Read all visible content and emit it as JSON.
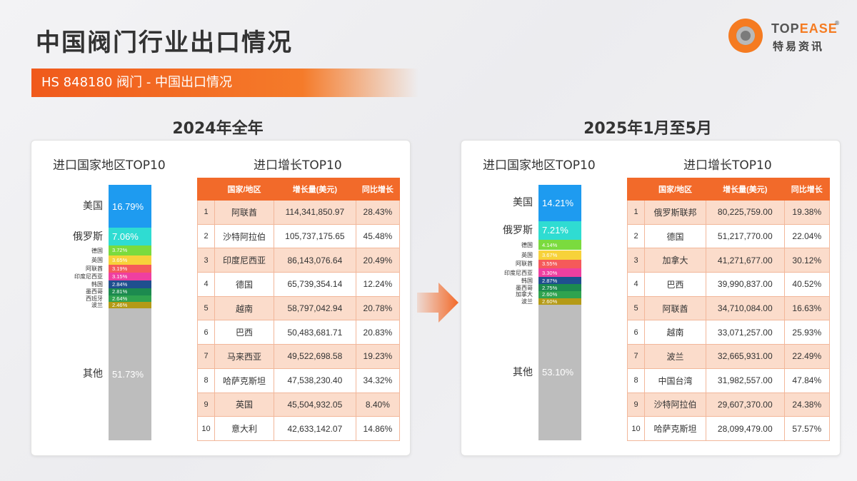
{
  "header": {
    "title": "中国阀门行业出口情况",
    "banner": "HS 848180 阀门 - 中国出口情况"
  },
  "logo": {
    "en_prefix": "TOP",
    "en_accent": "EASE",
    "reg": "®",
    "cn": "特易资讯"
  },
  "colors": {
    "accent": "#f26a2a",
    "segments": [
      "#1e9bf0",
      "#2fdcd2",
      "#7bdb3e",
      "#f7d23a",
      "#f55a5a",
      "#ef3fa0",
      "#1f4f8f",
      "#1c8a4f",
      "#2fa34f",
      "#b49a16",
      "#bdbdbd"
    ]
  },
  "panels": [
    {
      "period_title": "2024年全年",
      "share_title": "进口国家地区TOP10",
      "growth_title": "进口增长TOP10",
      "table_headers": [
        "",
        "国家/地区",
        "增长量(美元)",
        "同比增长"
      ],
      "growth_rows": [
        {
          "rank": "1",
          "country": "阿联酋",
          "amount": "114,341,850.97",
          "yoy": "28.43%"
        },
        {
          "rank": "2",
          "country": "沙特阿拉伯",
          "amount": "105,737,175.65",
          "yoy": "45.48%"
        },
        {
          "rank": "3",
          "country": "印度尼西亚",
          "amount": "86,143,076.64",
          "yoy": "20.49%"
        },
        {
          "rank": "4",
          "country": "德国",
          "amount": "65,739,354.14",
          "yoy": "12.24%"
        },
        {
          "rank": "5",
          "country": "越南",
          "amount": "58,797,042.94",
          "yoy": "20.78%"
        },
        {
          "rank": "6",
          "country": "巴西",
          "amount": "50,483,681.71",
          "yoy": "20.83%"
        },
        {
          "rank": "7",
          "country": "马来西亚",
          "amount": "49,522,698.58",
          "yoy": "19.23%"
        },
        {
          "rank": "8",
          "country": "哈萨克斯坦",
          "amount": "47,538,230.40",
          "yoy": "34.32%"
        },
        {
          "rank": "9",
          "country": "英国",
          "amount": "45,504,932.05",
          "yoy": "8.40%"
        },
        {
          "rank": "10",
          "country": "意大利",
          "amount": "42,633,142.07",
          "yoy": "14.86%"
        }
      ]
    },
    {
      "period_title": "2025年1月至5月",
      "share_title": "进口国家地区TOP10",
      "growth_title": "进口增长TOP10",
      "table_headers": [
        "",
        "国家/地区",
        "增长量(美元)",
        "同比增长"
      ],
      "growth_rows": [
        {
          "rank": "1",
          "country": "俄罗斯联邦",
          "amount": "80,225,759.00",
          "yoy": "19.38%"
        },
        {
          "rank": "2",
          "country": "德国",
          "amount": "51,217,770.00",
          "yoy": "22.04%"
        },
        {
          "rank": "3",
          "country": "加拿大",
          "amount": "41,271,677.00",
          "yoy": "30.12%"
        },
        {
          "rank": "4",
          "country": "巴西",
          "amount": "39,990,837.00",
          "yoy": "40.52%"
        },
        {
          "rank": "5",
          "country": "阿联酋",
          "amount": "34,710,084.00",
          "yoy": "16.63%"
        },
        {
          "rank": "6",
          "country": "越南",
          "amount": "33,071,257.00",
          "yoy": "25.93%"
        },
        {
          "rank": "7",
          "country": "波兰",
          "amount": "32,665,931.00",
          "yoy": "22.49%"
        },
        {
          "rank": "8",
          "country": "中国台湾",
          "amount": "31,982,557.00",
          "yoy": "47.84%"
        },
        {
          "rank": "9",
          "country": "沙特阿拉伯",
          "amount": "29,607,370.00",
          "yoy": "24.38%"
        },
        {
          "rank": "10",
          "country": "哈萨克斯坦",
          "amount": "28,099,479.00",
          "yoy": "57.57%"
        }
      ]
    }
  ],
  "chart_data": [
    {
      "type": "bar",
      "stacked": true,
      "title": "进口国家地区TOP10",
      "period": "2024年全年",
      "categories": [
        "美国",
        "俄罗斯",
        "德国",
        "英国",
        "阿联酋",
        "印度尼西亚",
        "韩国",
        "墨西哥",
        "西班牙",
        "波兰",
        "其他"
      ],
      "values": [
        16.79,
        7.06,
        3.72,
        3.65,
        3.19,
        3.15,
        2.84,
        2.81,
        2.64,
        2.46,
        51.73
      ],
      "labels": [
        "16.79%",
        "7.06%",
        "3.72%",
        "3.65%",
        "3.19%",
        "3.15%",
        "2.84%",
        "2.81%",
        "2.64%",
        "2.46%",
        "51.73%"
      ],
      "unit": "%"
    },
    {
      "type": "bar",
      "stacked": true,
      "title": "进口国家地区TOP10",
      "period": "2025年1月至5月",
      "categories": [
        "美国",
        "俄罗斯",
        "德国",
        "英国",
        "阿联酋",
        "印度尼西亚",
        "韩国",
        "墨西哥",
        "加拿大",
        "波兰",
        "其他"
      ],
      "values": [
        14.21,
        7.21,
        4.14,
        3.67,
        3.55,
        3.3,
        2.87,
        2.75,
        2.6,
        2.6,
        53.1
      ],
      "labels": [
        "14.21%",
        "7.21%",
        "4.14%",
        "3.67%",
        "3.55%",
        "3.30%",
        "2.87%",
        "2.75%",
        "2.60%",
        "2.60%",
        "53.10%"
      ],
      "unit": "%"
    }
  ]
}
